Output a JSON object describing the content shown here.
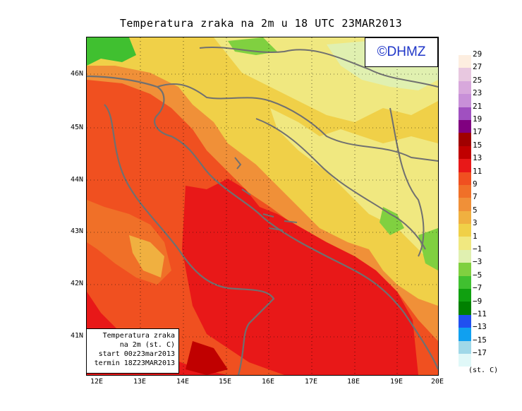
{
  "title": "Temperatura zraka na 2m u 18 UTC 23MAR2013",
  "logo": "©DHMZ",
  "info_box": {
    "line1": "Temperatura zraka",
    "line2": "na 2m (st. C)",
    "line3": "start 00z23mar2013",
    "line4": "termin 18Z23MAR2013"
  },
  "lat_labels": [
    "46N",
    "45N",
    "44N",
    "43N",
    "42N",
    "41N"
  ],
  "lon_labels": [
    "12E",
    "13E",
    "14E",
    "15E",
    "16E",
    "17E",
    "18E",
    "19E",
    "20E"
  ],
  "colorbar": {
    "labels": [
      "29",
      "27",
      "25",
      "23",
      "21",
      "19",
      "17",
      "15",
      "13",
      "11",
      "9",
      "7",
      "5",
      "3",
      "1",
      "−1",
      "−3",
      "−5",
      "−7",
      "−9",
      "−11",
      "−13",
      "−15",
      "−17"
    ],
    "unit": "(st. C)",
    "colors": [
      "#fdeee0",
      "#e8c8e0",
      "#d8a8dc",
      "#c890d8",
      "#a050c0",
      "#800080",
      "#a00000",
      "#c00000",
      "#e81818",
      "#f05020",
      "#f07028",
      "#f09038",
      "#f0b040",
      "#f0d048",
      "#f0e880",
      "#e0f0b0",
      "#80d040",
      "#40c030",
      "#10a010",
      "#008000",
      "#2050f0",
      "#10a0f0",
      "#a0d8e8",
      "#e0f8f8"
    ]
  }
}
